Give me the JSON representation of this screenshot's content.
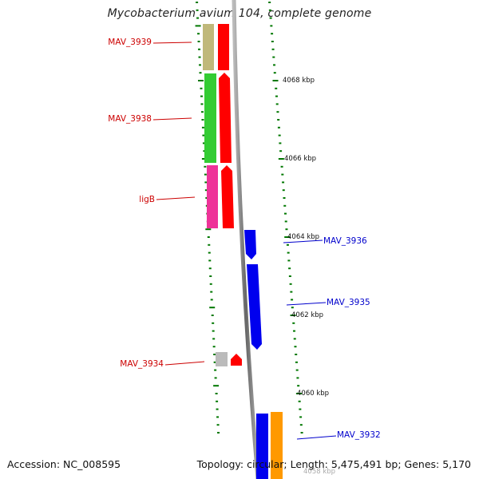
{
  "title": "Mycobacterium avium 104, complete genome",
  "footer": {
    "accession": "Accession: NC_008595",
    "summary": "Topology: circular; Length: 5,475,491 bp; Genes: 5,170"
  },
  "scale_labels": [
    "4068 kbp",
    "4066 kbp",
    "4064 kbp",
    "4062 kbp",
    "4060 kbp",
    "4058 kbp"
  ],
  "genes": [
    {
      "label": "MAV_3939",
      "strand": "forward",
      "color": "#c0b87a"
    },
    {
      "label": "MAV_3938",
      "strand": "forward",
      "color": "#33cc33"
    },
    {
      "label": "ligB",
      "strand": "forward",
      "color": "#ee3399"
    },
    {
      "label": "MAV_3936",
      "strand": "reverse",
      "color": "#0000ee"
    },
    {
      "label": "MAV_3935",
      "strand": "reverse",
      "color": "#0000ee"
    },
    {
      "label": "MAV_3934",
      "strand": "forward",
      "color": "#bbbbbb"
    },
    {
      "label": "MAV_3932",
      "strand": "reverse",
      "color": "#ff9900"
    }
  ],
  "colors": {
    "forward_label": "#cc0000",
    "reverse_label": "#0000cc",
    "cds_forward": "#ff0000",
    "cds_reverse": "#0000ee",
    "ticks": "#007700",
    "backbone": "#888888"
  }
}
